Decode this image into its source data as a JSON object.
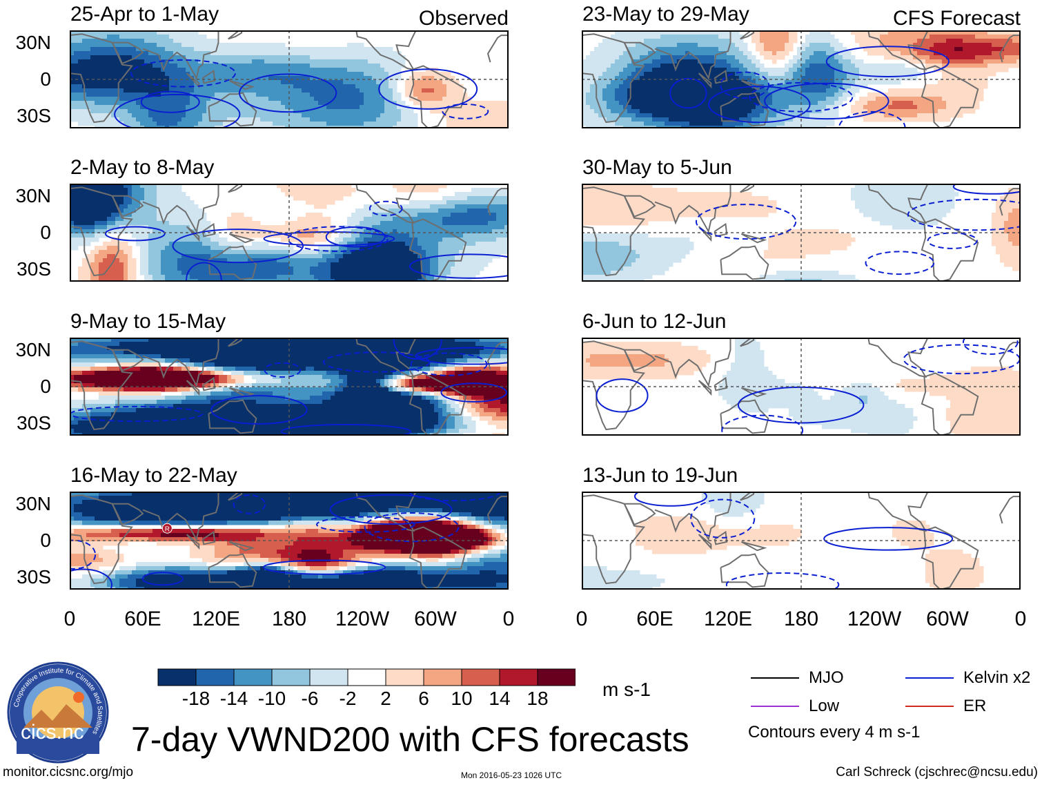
{
  "chart_data": {
    "type": "heatmap",
    "title": "7-day VWND200 with CFS forecasts",
    "variable": "VWND200",
    "units": "m s-1",
    "columns": [
      {
        "label": "Observed",
        "panels": [
          {
            "period": "25-Apr to 1-May",
            "intensity": 0.55,
            "seed": 3
          },
          {
            "period": "2-May to 8-May",
            "intensity": 0.85,
            "seed": 11
          },
          {
            "period": "9-May to 15-May",
            "intensity": 1.0,
            "seed": 23
          },
          {
            "period": "16-May to 22-May",
            "intensity": 1.0,
            "seed": 31
          }
        ]
      },
      {
        "label": "CFS Forecast",
        "panels": [
          {
            "period": "23-May to 29-May",
            "intensity": 0.6,
            "seed": 41
          },
          {
            "period": "30-May to 5-Jun",
            "intensity": 0.35,
            "seed": 53
          },
          {
            "period": "6-Jun to 12-Jun",
            "intensity": 0.28,
            "seed": 67
          },
          {
            "period": "13-Jun to 19-Jun",
            "intensity": 0.22,
            "seed": 79
          }
        ]
      }
    ],
    "y_ticks": [
      "30N",
      "0",
      "30S"
    ],
    "ylim": [
      -40,
      40
    ],
    "x_ticks": [
      "0",
      "60E",
      "120E",
      "180",
      "120W",
      "60W",
      "0"
    ],
    "xlim": [
      0,
      360
    ],
    "colorbar": {
      "levels": [
        "-18",
        "-14",
        "-10",
        "-6",
        "-2",
        "2",
        "6",
        "10",
        "14",
        "18"
      ],
      "colors": [
        "#08306b",
        "#2166ac",
        "#4393c3",
        "#92c5de",
        "#d1e5f0",
        "#ffffff",
        "#fddbc7",
        "#f4a582",
        "#d6604d",
        "#b2182b",
        "#67001f"
      ],
      "units_label": "m s-1"
    },
    "legend": [
      {
        "label": "MJO",
        "color": "#000000"
      },
      {
        "label": "Kelvin x2",
        "color": "#0a1ed2"
      },
      {
        "label": "Low",
        "color": "#9b30d0"
      },
      {
        "label": "ER",
        "color": "#d2281e"
      }
    ],
    "contour_note": "Contours every 4 m s-1",
    "marker_label": "R"
  },
  "footer": {
    "url": "monitor.cicsnc.org/mjo",
    "timestamp": "Mon 2016-05-23 1026 UTC",
    "author": "Carl Schreck (cjschrec@ncsu.edu)",
    "logo_text": "cics.nc",
    "logo_ring_text": "Cooperative Institute for Climate and Satellites"
  }
}
